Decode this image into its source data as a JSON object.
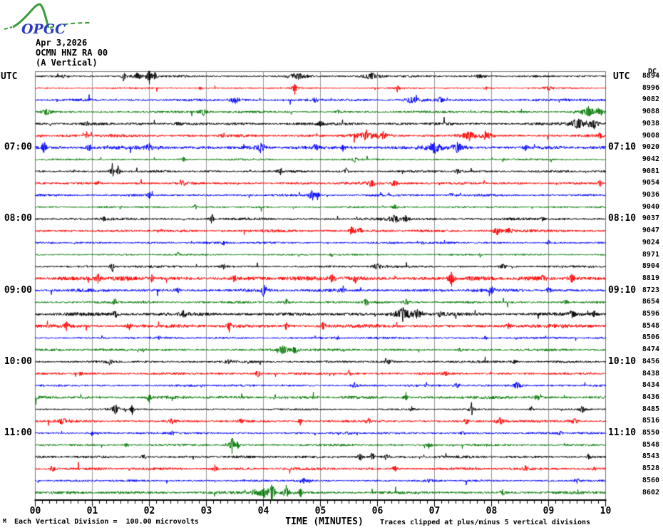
{
  "logo": {
    "text": "OPGC"
  },
  "header": {
    "date": "Apr 3,2026",
    "station": "OCMN HNZ RA 00",
    "component": "(A Vertical)"
  },
  "axis_headers": {
    "left_utc": "UTC",
    "right_utc": "UTC",
    "dc": "DC"
  },
  "footer": {
    "corner_mark": "M",
    "scale_note": "Each Vertical Division =  100.00 microvolts",
    "clip_note": "Traces clipped at plus/minus 5 vertical divisions"
  },
  "chart_data": {
    "type": "line",
    "subtype": "helicorder-seismogram",
    "title": "OCMN HNZ RA 00 (A Vertical) Apr 3,2026",
    "xlabel": "TIME (MINUTES)",
    "x_ticks": [
      "00",
      "01",
      "02",
      "03",
      "04",
      "05",
      "06",
      "07",
      "08",
      "09",
      "10"
    ],
    "x_range_minutes": [
      0,
      10
    ],
    "minor_ticks_per_minute": 8,
    "minutes_per_row": 10,
    "grid": true,
    "trace_color_cycle": [
      "#000000",
      "#ff0000",
      "#0000ff",
      "#007700"
    ],
    "grid_color": "#999999",
    "frame_color": "#777777",
    "hour_labels_left": [
      "07:00",
      "08:00",
      "09:00",
      "10:00",
      "11:00"
    ],
    "hour_labels_right": [
      "07:10",
      "08:10",
      "09:10",
      "10:10",
      "11:10"
    ],
    "rows": [
      {
        "dc": "8894",
        "color": "#000000",
        "amp": 1.3,
        "seed": 101,
        "events": [
          [
            0.5,
            3,
            2
          ],
          [
            1.55,
            10,
            2
          ],
          [
            1.8,
            6,
            6
          ],
          [
            2.0,
            13,
            3
          ],
          [
            2.1,
            9,
            2
          ],
          [
            4.6,
            5,
            10
          ],
          [
            5.9,
            5,
            12
          ],
          [
            7.8,
            3,
            8
          ]
        ]
      },
      {
        "dc": "8996",
        "color": "#ff0000",
        "amp": 1.0,
        "seed": 202,
        "events": [
          [
            2.9,
            3,
            2
          ],
          [
            4.55,
            9,
            2
          ],
          [
            6.35,
            6,
            2
          ],
          [
            7.9,
            3,
            3
          ],
          [
            9.0,
            3,
            6
          ]
        ]
      },
      {
        "dc": "9082",
        "color": "#0000ff",
        "amp": 1.6,
        "seed": 303,
        "events": [
          [
            3.5,
            5,
            6
          ],
          [
            4.9,
            4,
            4
          ],
          [
            6.6,
            5,
            8
          ],
          [
            7.1,
            5,
            4
          ],
          [
            9.3,
            3,
            4
          ]
        ]
      },
      {
        "dc": "9088",
        "color": "#007700",
        "amp": 1.4,
        "seed": 404,
        "events": [
          [
            0.2,
            5,
            6
          ],
          [
            2.95,
            6,
            5
          ],
          [
            5.3,
            3,
            4
          ],
          [
            9.7,
            8,
            8
          ],
          [
            9.9,
            6,
            4
          ]
        ]
      },
      {
        "dc": "9038",
        "color": "#000000",
        "amp": 1.7,
        "seed": 505,
        "events": [
          [
            0.9,
            4,
            3
          ],
          [
            2.5,
            4,
            4
          ],
          [
            5.0,
            4,
            6
          ],
          [
            9.5,
            8,
            10
          ],
          [
            9.8,
            7,
            6
          ]
        ]
      },
      {
        "dc": "9008",
        "color": "#ff0000",
        "amp": 1.8,
        "seed": 606,
        "events": [
          [
            0.9,
            6,
            2
          ],
          [
            3.3,
            4,
            4
          ],
          [
            5.8,
            7,
            10
          ],
          [
            6.1,
            6,
            6
          ],
          [
            7.6,
            7,
            8
          ],
          [
            7.9,
            6,
            6
          ],
          [
            9.9,
            5,
            3
          ]
        ]
      },
      {
        "dc": "9020",
        "color": "#0000ff",
        "left": "07:00",
        "right": "07:10",
        "amp": 2.2,
        "seed": 707,
        "events": [
          [
            0.15,
            8,
            3
          ],
          [
            0.95,
            7,
            3
          ],
          [
            2.0,
            6,
            3
          ],
          [
            3.95,
            8,
            5
          ],
          [
            4.9,
            6,
            3
          ],
          [
            5.4,
            5,
            3
          ],
          [
            7.0,
            8,
            8
          ],
          [
            7.4,
            9,
            6
          ],
          [
            8.6,
            5,
            3
          ]
        ]
      },
      {
        "dc": "9042",
        "color": "#007700",
        "amp": 1.2,
        "seed": 808,
        "events": [
          [
            2.6,
            4,
            3
          ],
          [
            5.6,
            6,
            2
          ],
          [
            8.2,
            3,
            3
          ]
        ]
      },
      {
        "dc": "9081",
        "color": "#000000",
        "amp": 1.5,
        "seed": 909,
        "events": [
          [
            1.35,
            12,
            2
          ],
          [
            1.45,
            10,
            2
          ],
          [
            4.3,
            5,
            3
          ],
          [
            5.45,
            7,
            2
          ],
          [
            7.4,
            4,
            4
          ]
        ]
      },
      {
        "dc": "9054",
        "color": "#ff0000",
        "amp": 1.6,
        "seed": 1010,
        "events": [
          [
            1.1,
            3,
            3
          ],
          [
            2.6,
            6,
            2
          ],
          [
            5.9,
            5,
            8
          ],
          [
            6.3,
            5,
            4
          ],
          [
            9.9,
            6,
            2
          ]
        ]
      },
      {
        "dc": "9036",
        "color": "#0000ff",
        "amp": 1.5,
        "seed": 1111,
        "events": [
          [
            2.0,
            5,
            2
          ],
          [
            4.85,
            11,
            3
          ],
          [
            4.95,
            8,
            2
          ],
          [
            7.3,
            4,
            3
          ]
        ]
      },
      {
        "dc": "9040",
        "color": "#007700",
        "amp": 1.2,
        "seed": 1212,
        "events": [
          [
            1.5,
            3,
            2
          ],
          [
            2.8,
            5,
            2
          ],
          [
            6.3,
            4,
            3
          ]
        ]
      },
      {
        "dc": "9037",
        "color": "#000000",
        "left": "08:00",
        "right": "08:10",
        "amp": 1.6,
        "seed": 1313,
        "events": [
          [
            1.2,
            3,
            3
          ],
          [
            3.1,
            9,
            2
          ],
          [
            6.3,
            6,
            6
          ],
          [
            6.5,
            5,
            4
          ],
          [
            8.9,
            4,
            3
          ]
        ]
      },
      {
        "dc": "9047",
        "color": "#ff0000",
        "amp": 1.7,
        "seed": 1414,
        "events": [
          [
            2.2,
            4,
            2
          ],
          [
            5.55,
            7,
            4
          ],
          [
            5.7,
            6,
            3
          ],
          [
            8.1,
            6,
            5
          ],
          [
            8.3,
            5,
            4
          ]
        ]
      },
      {
        "dc": "9024",
        "color": "#0000ff",
        "amp": 1.3,
        "seed": 1515,
        "events": [
          [
            3.3,
            3,
            3
          ],
          [
            6.8,
            3,
            3
          ],
          [
            9.0,
            4,
            2
          ]
        ]
      },
      {
        "dc": "8971",
        "color": "#007700",
        "amp": 1.1,
        "seed": 1616,
        "events": [
          [
            2.5,
            4,
            2
          ],
          [
            5.2,
            3,
            3
          ],
          [
            7.8,
            3,
            2
          ]
        ]
      },
      {
        "dc": "8904",
        "color": "#000000",
        "amp": 1.4,
        "seed": 1717,
        "events": [
          [
            1.35,
            11,
            2
          ],
          [
            3.3,
            4,
            3
          ],
          [
            6.0,
            4,
            8
          ],
          [
            8.2,
            4,
            4
          ]
        ]
      },
      {
        "dc": "8819",
        "color": "#ff0000",
        "amp": 2.6,
        "seed": 1818,
        "events": [
          [
            1.1,
            7,
            3
          ],
          [
            2.05,
            8,
            2
          ],
          [
            3.5,
            7,
            3
          ],
          [
            5.2,
            7,
            4
          ],
          [
            5.6,
            6,
            3
          ],
          [
            7.3,
            12,
            3
          ],
          [
            8.9,
            6,
            3
          ],
          [
            9.4,
            8,
            3
          ]
        ]
      },
      {
        "dc": "8723",
        "color": "#0000ff",
        "left": "09:00",
        "right": "09:10",
        "amp": 2.0,
        "seed": 1919,
        "events": [
          [
            2.5,
            5,
            3
          ],
          [
            4.0,
            12,
            3
          ],
          [
            5.4,
            5,
            4
          ],
          [
            8.0,
            5,
            5
          ],
          [
            9.0,
            5,
            3
          ]
        ]
      },
      {
        "dc": "8654",
        "color": "#007700",
        "amp": 1.5,
        "seed": 2020,
        "events": [
          [
            1.4,
            5,
            3
          ],
          [
            4.4,
            4,
            4
          ],
          [
            5.8,
            6,
            3
          ],
          [
            6.5,
            5,
            3
          ],
          [
            9.3,
            4,
            3
          ]
        ]
      },
      {
        "dc": "8596",
        "color": "#000000",
        "amp": 2.2,
        "seed": 2121,
        "events": [
          [
            1.4,
            6,
            3
          ],
          [
            2.6,
            5,
            3
          ],
          [
            6.45,
            12,
            8
          ],
          [
            6.7,
            8,
            5
          ],
          [
            7.1,
            6,
            3
          ],
          [
            9.4,
            5,
            4
          ],
          [
            9.8,
            5,
            3
          ]
        ]
      },
      {
        "dc": "8548",
        "color": "#ff0000",
        "amp": 2.2,
        "seed": 2222,
        "events": [
          [
            0.55,
            6,
            3
          ],
          [
            1.65,
            5,
            3
          ],
          [
            3.4,
            11,
            2
          ],
          [
            4.4,
            5,
            3
          ],
          [
            5.05,
            6,
            3
          ],
          [
            8.3,
            4,
            4
          ]
        ]
      },
      {
        "dc": "8506",
        "color": "#0000ff",
        "amp": 1.4,
        "seed": 2323,
        "events": [
          [
            2.2,
            4,
            3
          ],
          [
            5.3,
            3,
            3
          ],
          [
            7.9,
            3,
            3
          ]
        ]
      },
      {
        "dc": "8474",
        "color": "#007700",
        "amp": 1.5,
        "seed": 2424,
        "events": [
          [
            1.9,
            3,
            3
          ],
          [
            4.35,
            7,
            6
          ],
          [
            4.55,
            6,
            4
          ],
          [
            7.45,
            4,
            3
          ]
        ]
      },
      {
        "dc": "8456",
        "color": "#000000",
        "left": "10:00",
        "right": "10:10",
        "amp": 1.5,
        "seed": 2525,
        "events": [
          [
            1.3,
            4,
            4
          ],
          [
            3.4,
            4,
            4
          ],
          [
            6.2,
            4,
            4
          ],
          [
            8.4,
            3,
            4
          ]
        ]
      },
      {
        "dc": "8438",
        "color": "#ff0000",
        "amp": 1.5,
        "seed": 2626,
        "events": [
          [
            0.8,
            3,
            3
          ],
          [
            3.9,
            6,
            3
          ],
          [
            5.5,
            5,
            3
          ],
          [
            7.2,
            4,
            3
          ]
        ]
      },
      {
        "dc": "8434",
        "color": "#0000ff",
        "amp": 1.4,
        "seed": 2727,
        "events": [
          [
            2.9,
            3,
            3
          ],
          [
            5.6,
            5,
            3
          ],
          [
            7.4,
            5,
            3
          ],
          [
            8.45,
            6,
            6
          ]
        ]
      },
      {
        "dc": "8436",
        "color": "#007700",
        "amp": 1.9,
        "seed": 2828,
        "events": [
          [
            2.0,
            9,
            2
          ],
          [
            4.2,
            4,
            3
          ],
          [
            6.5,
            5,
            3
          ],
          [
            8.8,
            4,
            3
          ]
        ]
      },
      {
        "dc": "8485",
        "color": "#000000",
        "amp": 1.1,
        "seed": 2929,
        "events": [
          [
            1.4,
            7,
            5
          ],
          [
            1.7,
            9,
            2
          ],
          [
            6.6,
            4,
            3
          ],
          [
            7.65,
            9,
            2
          ],
          [
            8.7,
            4,
            3
          ],
          [
            9.6,
            5,
            4
          ]
        ]
      },
      {
        "dc": "8516",
        "color": "#ff0000",
        "amp": 1.6,
        "seed": 3030,
        "events": [
          [
            0.5,
            5,
            6
          ],
          [
            2.4,
            5,
            4
          ],
          [
            3.6,
            4,
            3
          ],
          [
            4.65,
            6,
            2
          ],
          [
            5.85,
            5,
            3
          ],
          [
            7.55,
            5,
            3
          ],
          [
            8.15,
            6,
            5
          ],
          [
            9.45,
            5,
            4
          ]
        ]
      },
      {
        "dc": "8550",
        "color": "#0000ff",
        "left": "11:00",
        "right": "11:10",
        "amp": 1.3,
        "seed": 3131,
        "events": [
          [
            1.0,
            5,
            2
          ],
          [
            2.4,
            4,
            4
          ],
          [
            5.5,
            3,
            3
          ],
          [
            7.5,
            4,
            3
          ],
          [
            9.2,
            4,
            3
          ]
        ]
      },
      {
        "dc": "8548",
        "color": "#007700",
        "amp": 1.4,
        "seed": 3232,
        "events": [
          [
            1.6,
            3,
            3
          ],
          [
            3.45,
            12,
            3
          ],
          [
            3.55,
            6,
            2
          ],
          [
            6.9,
            4,
            3
          ]
        ]
      },
      {
        "dc": "8543",
        "color": "#000000",
        "amp": 1.6,
        "seed": 3333,
        "events": [
          [
            1.9,
            4,
            3
          ],
          [
            5.7,
            7,
            3
          ],
          [
            5.9,
            6,
            3
          ],
          [
            6.15,
            6,
            3
          ],
          [
            9.7,
            5,
            3
          ]
        ]
      },
      {
        "dc": "8528",
        "color": "#ff0000",
        "amp": 1.7,
        "seed": 3434,
        "events": [
          [
            0.3,
            5,
            3
          ],
          [
            3.15,
            7,
            2
          ],
          [
            6.3,
            5,
            3
          ],
          [
            8.6,
            4,
            4
          ],
          [
            9.8,
            4,
            3
          ]
        ]
      },
      {
        "dc": "8560",
        "color": "#0000ff",
        "amp": 1.3,
        "seed": 3535,
        "events": [
          [
            4.7,
            5,
            4
          ],
          [
            6.9,
            3,
            3
          ],
          [
            9.5,
            4,
            4
          ]
        ]
      },
      {
        "dc": "8602",
        "color": "#007700",
        "amp": 1.8,
        "seed": 3636,
        "events": [
          [
            3.85,
            5,
            4
          ],
          [
            4.0,
            8,
            6
          ],
          [
            4.15,
            18,
            3
          ],
          [
            4.4,
            7,
            5
          ],
          [
            4.65,
            8,
            2
          ],
          [
            8.2,
            4,
            3
          ]
        ]
      }
    ]
  }
}
